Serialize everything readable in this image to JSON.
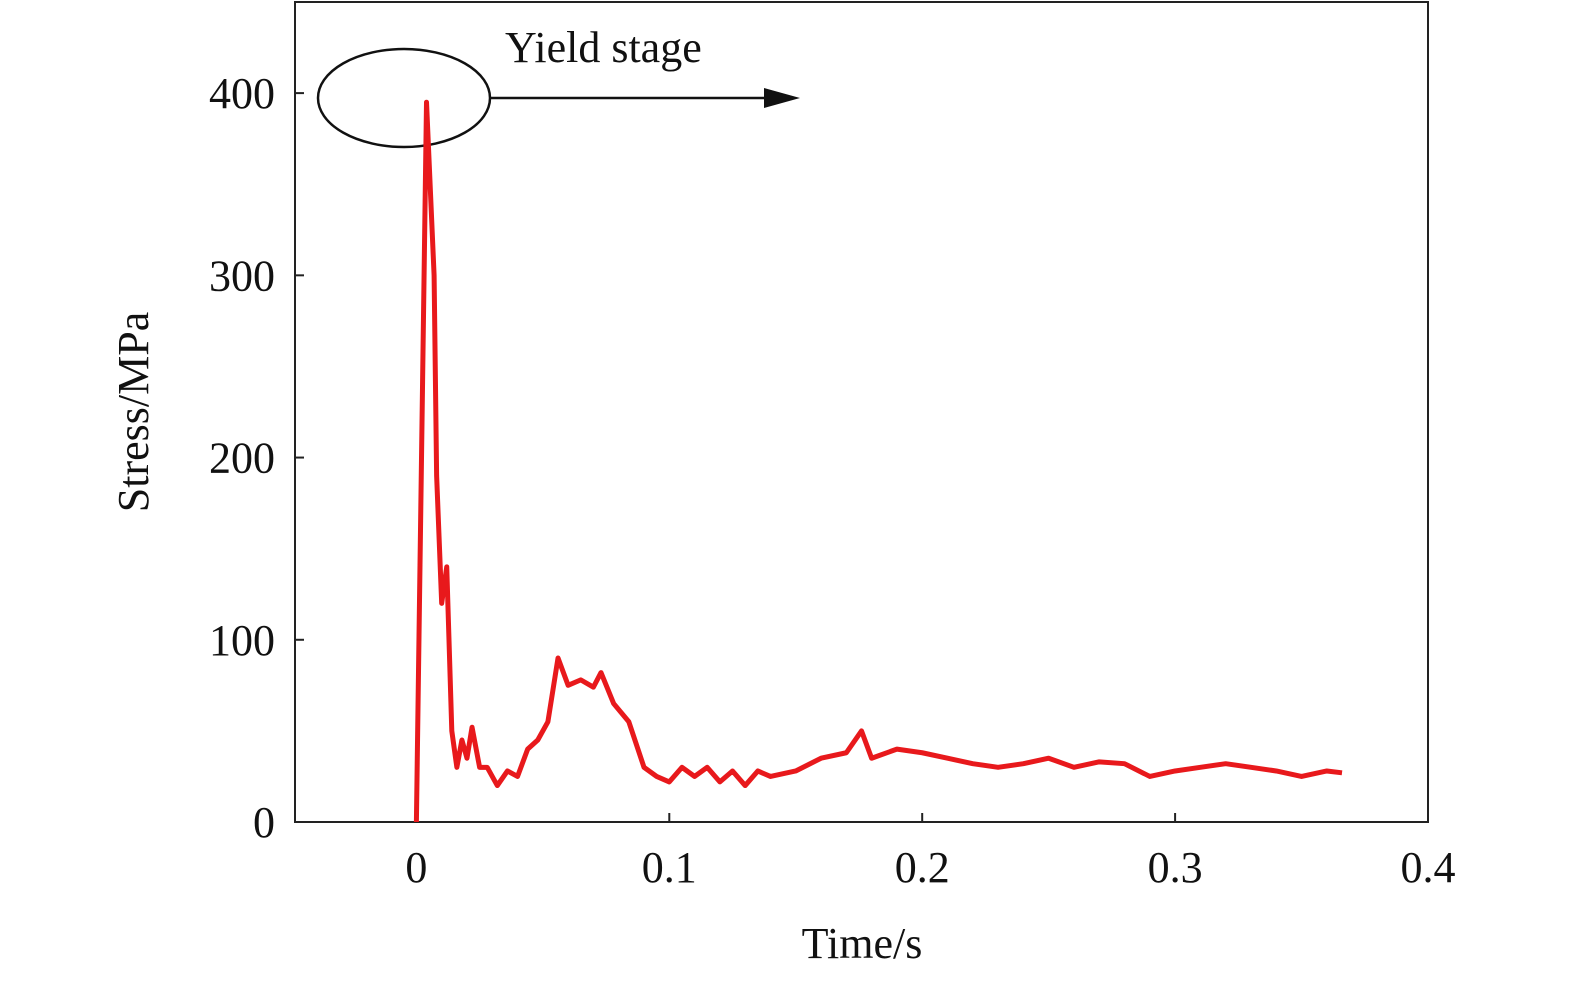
{
  "chart_data": {
    "type": "line",
    "annotation": "Yield stage",
    "x_label": "Time/s",
    "y_label": "Stress/MPa",
    "xlim": [
      -0.048,
      0.4
    ],
    "ylim": [
      0,
      450
    ],
    "xticks": [
      0,
      0.1,
      0.2,
      0.3,
      0.4
    ],
    "yticks": [
      0,
      100,
      200,
      300,
      400
    ],
    "grid": false,
    "color": "#e8191c",
    "x": [
      0,
      0.004,
      0.007,
      0.008,
      0.01,
      0.012,
      0.014,
      0.016,
      0.018,
      0.02,
      0.022,
      0.025,
      0.028,
      0.032,
      0.036,
      0.04,
      0.044,
      0.048,
      0.052,
      0.056,
      0.06,
      0.065,
      0.07,
      0.073,
      0.078,
      0.084,
      0.09,
      0.095,
      0.1,
      0.105,
      0.11,
      0.115,
      0.12,
      0.125,
      0.13,
      0.135,
      0.14,
      0.15,
      0.16,
      0.17,
      0.176,
      0.18,
      0.19,
      0.2,
      0.21,
      0.22,
      0.23,
      0.24,
      0.25,
      0.26,
      0.27,
      0.28,
      0.29,
      0.3,
      0.31,
      0.32,
      0.33,
      0.34,
      0.35,
      0.36,
      0.366
    ],
    "values": [
      0,
      395,
      300,
      190,
      120,
      140,
      50,
      30,
      45,
      35,
      52,
      30,
      30,
      20,
      28,
      25,
      40,
      45,
      55,
      90,
      75,
      78,
      74,
      82,
      65,
      55,
      30,
      25,
      22,
      30,
      25,
      30,
      22,
      28,
      20,
      28,
      25,
      28,
      35,
      38,
      50,
      35,
      40,
      38,
      35,
      32,
      30,
      32,
      35,
      30,
      33,
      32,
      25,
      28,
      30,
      32,
      30,
      28,
      25,
      28,
      27
    ]
  }
}
